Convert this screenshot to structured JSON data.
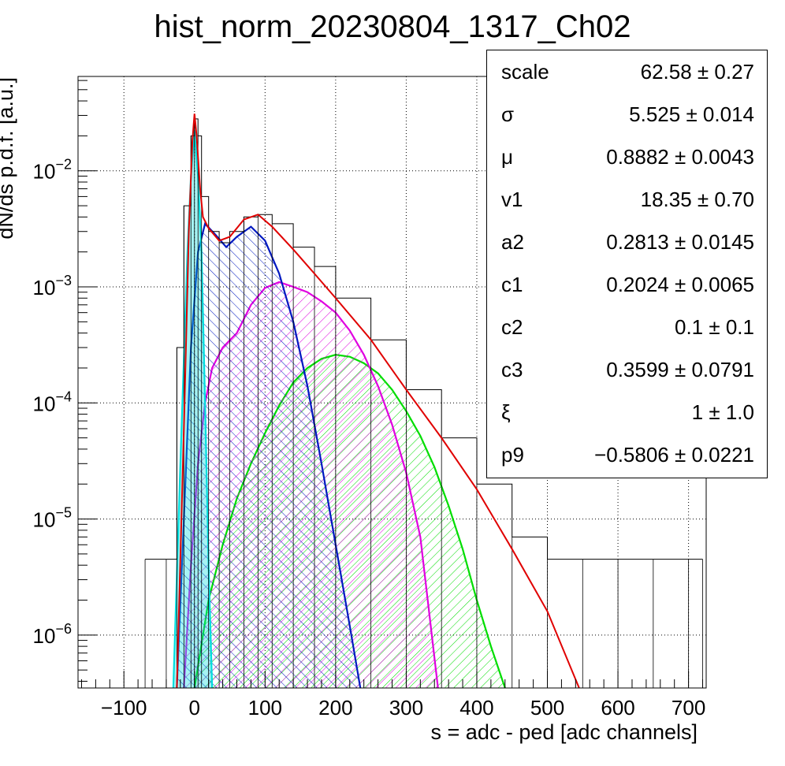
{
  "chart_data": {
    "type": "histogram_with_fit",
    "title": "hist_norm_20230804_1317_Ch02",
    "xlabel": "s = adc - ped [adc channels]",
    "ylabel": "dN/ds p.d.f. [a.u.]",
    "xlim": [
      -165,
      725
    ],
    "ylim": [
      3.5e-07,
      0.065
    ],
    "yscale": "log",
    "grid": true,
    "xticks": [
      -100,
      0,
      100,
      200,
      300,
      400,
      500,
      600,
      700
    ],
    "yticks": [
      {
        "value": 1e-06,
        "base": "10",
        "exp": "−6"
      },
      {
        "value": 1e-05,
        "base": "10",
        "exp": "−5"
      },
      {
        "value": 0.0001,
        "base": "10",
        "exp": "−4"
      },
      {
        "value": 0.001,
        "base": "10",
        "exp": "−3"
      },
      {
        "value": 0.01,
        "base": "10",
        "exp": "−2"
      }
    ],
    "series": [
      {
        "color": "#000000",
        "style": "histogram",
        "x": [
          -70,
          -40,
          -25,
          -15,
          -5,
          0,
          5,
          10,
          20,
          35,
          50,
          70,
          90,
          110,
          140,
          170,
          200,
          250,
          300,
          350,
          400,
          450,
          500,
          550,
          600,
          650,
          700,
          720
        ],
        "y": [
          4.5e-06,
          4.5e-06,
          0.0003,
          0.005,
          0.02,
          0.028,
          0.02,
          0.006,
          0.003,
          0.0024,
          0.003,
          0.004,
          0.0042,
          0.0035,
          0.0022,
          0.0015,
          0.0008,
          0.00035,
          0.00013,
          5e-05,
          2e-05,
          7e-06,
          4.5e-06,
          4.5e-06,
          4.5e-06,
          4.5e-06,
          4.5e-06,
          4.5e-06
        ]
      },
      {
        "color": "#e00000",
        "style": "line",
        "x": [
          -25,
          -15,
          -8,
          -3,
          0,
          3,
          8,
          12,
          20,
          35,
          50,
          70,
          90,
          110,
          140,
          170,
          200,
          250,
          300,
          350,
          400,
          450,
          500,
          545
        ],
        "y": [
          3.5e-07,
          6e-05,
          0.003,
          0.018,
          0.031,
          0.02,
          0.007,
          0.004,
          0.0032,
          0.0025,
          0.0027,
          0.0038,
          0.0042,
          0.0033,
          0.0021,
          0.0013,
          0.0008,
          0.00035,
          0.00013,
          5e-05,
          1.8e-05,
          5.5e-06,
          1.6e-06,
          3.5e-07
        ]
      },
      {
        "color": "#00dddd",
        "style": "filled",
        "x": [
          -30,
          -20,
          -10,
          -5,
          0,
          5,
          10,
          15,
          20,
          25
        ],
        "y": [
          3.5e-07,
          3e-05,
          0.002,
          0.009,
          0.022,
          0.009,
          0.002,
          0.0001,
          4e-06,
          3.5e-07
        ]
      },
      {
        "color": "#0018c0",
        "style": "filled",
        "x": [
          -25,
          -15,
          -5,
          5,
          15,
          30,
          45,
          60,
          80,
          100,
          120,
          140,
          160,
          180,
          200,
          220,
          235
        ],
        "y": [
          3.5e-07,
          1e-05,
          0.0003,
          0.002,
          0.0035,
          0.0028,
          0.0022,
          0.0027,
          0.0033,
          0.0025,
          0.0013,
          0.0005,
          0.00014,
          3e-05,
          6e-06,
          1.2e-06,
          3.5e-07
        ]
      },
      {
        "color": "#e000e0",
        "style": "filled",
        "x": [
          -15,
          -5,
          5,
          15,
          25,
          40,
          60,
          80,
          100,
          120,
          140,
          160,
          180,
          200,
          220,
          240,
          260,
          280,
          300,
          320,
          345
        ],
        "y": [
          3.5e-07,
          4e-06,
          3e-05,
          0.0001,
          0.0002,
          0.0003,
          0.0004,
          0.0007,
          0.00098,
          0.0011,
          0.001,
          0.0009,
          0.00075,
          0.0006,
          0.00042,
          0.00026,
          0.00014,
          6.5e-05,
          2.5e-05,
          7e-06,
          3.5e-07
        ]
      },
      {
        "color": "#00dd00",
        "style": "filled",
        "x": [
          0,
          20,
          40,
          60,
          80,
          100,
          120,
          140,
          160,
          180,
          200,
          220,
          240,
          260,
          280,
          300,
          320,
          340,
          360,
          380,
          400,
          420,
          440
        ],
        "y": [
          3.5e-07,
          2e-06,
          6e-06,
          1.5e-05,
          3e-05,
          5.5e-05,
          9.5e-05,
          0.00015,
          0.0002,
          0.00024,
          0.00026,
          0.00025,
          0.00022,
          0.00018,
          0.00013,
          8.5e-05,
          5.2e-05,
          2.8e-05,
          1.3e-05,
          5.5e-06,
          2e-06,
          8e-07,
          3.5e-07
        ]
      }
    ]
  },
  "stats": [
    {
      "name": "scale",
      "value": "62.58 ± 0.27"
    },
    {
      "name": "σ",
      "value": "5.525 ± 0.014"
    },
    {
      "name": "μ",
      "value": "0.8882 ± 0.0043"
    },
    {
      "name": "v1",
      "value": "18.35 ± 0.70"
    },
    {
      "name": "a2",
      "value": "0.2813 ± 0.0145"
    },
    {
      "name": "c1",
      "value": "0.2024 ± 0.0065"
    },
    {
      "name": "c2",
      "value": "0.1 ± 0.1"
    },
    {
      "name": "c3",
      "value": "0.3599 ± 0.0791"
    },
    {
      "name": "ξ",
      "value": "1 ± 1.0"
    },
    {
      "name": "p9",
      "value": "−0.5806 ± 0.0221"
    }
  ]
}
